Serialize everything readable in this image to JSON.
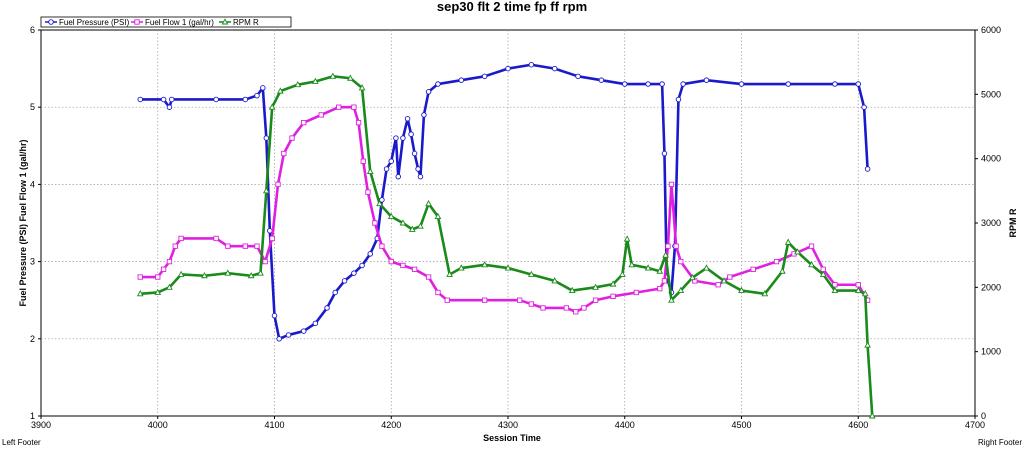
{
  "chart_data": {
    "type": "line",
    "title": "sep30 flt 2 time fp ff rpm",
    "xlabel": "Session Time",
    "ylabel": "Fuel Pressure (PSI) Fuel Flow 1 (gal/hr)",
    "ylabel_right": "RPM R",
    "xlim": [
      3900,
      4700
    ],
    "ylim": [
      1,
      6
    ],
    "ylim_right": [
      0,
      6000
    ],
    "x_ticks": [
      "3900",
      "4000",
      "4100",
      "4200",
      "4300",
      "4400",
      "4500",
      "4600",
      "4700"
    ],
    "y_ticks": [
      "1",
      "2",
      "3",
      "4",
      "5",
      "6"
    ],
    "y_ticks_right": [
      "0",
      "1000",
      "2000",
      "3000",
      "4000",
      "5000",
      "6000"
    ],
    "grid": true,
    "legend_position": "top-left",
    "series": [
      {
        "name": "Fuel Pressure (PSI)",
        "color": "#1a1acc",
        "marker": "circle",
        "axis": "left",
        "points": [
          [
            3985,
            5.1
          ],
          [
            4005,
            5.1
          ],
          [
            4010,
            5.0
          ],
          [
            4012,
            5.1
          ],
          [
            4050,
            5.1
          ],
          [
            4075,
            5.1
          ],
          [
            4085,
            5.15
          ],
          [
            4090,
            5.25
          ],
          [
            4093,
            4.6
          ],
          [
            4096,
            3.4
          ],
          [
            4100,
            2.3
          ],
          [
            4104,
            2.0
          ],
          [
            4112,
            2.05
          ],
          [
            4125,
            2.1
          ],
          [
            4135,
            2.2
          ],
          [
            4145,
            2.4
          ],
          [
            4152,
            2.6
          ],
          [
            4160,
            2.75
          ],
          [
            4168,
            2.85
          ],
          [
            4175,
            2.95
          ],
          [
            4182,
            3.1
          ],
          [
            4188,
            3.3
          ],
          [
            4192,
            3.8
          ],
          [
            4196,
            4.2
          ],
          [
            4200,
            4.3
          ],
          [
            4204,
            4.6
          ],
          [
            4206,
            4.1
          ],
          [
            4210,
            4.6
          ],
          [
            4214,
            4.85
          ],
          [
            4217,
            4.65
          ],
          [
            4220,
            4.4
          ],
          [
            4223,
            4.2
          ],
          [
            4225,
            4.1
          ],
          [
            4228,
            4.9
          ],
          [
            4232,
            5.2
          ],
          [
            4240,
            5.3
          ],
          [
            4260,
            5.35
          ],
          [
            4280,
            5.4
          ],
          [
            4300,
            5.5
          ],
          [
            4320,
            5.55
          ],
          [
            4340,
            5.5
          ],
          [
            4360,
            5.4
          ],
          [
            4380,
            5.35
          ],
          [
            4400,
            5.3
          ],
          [
            4420,
            5.3
          ],
          [
            4432,
            5.3
          ],
          [
            4434,
            4.4
          ],
          [
            4436,
            2.8
          ],
          [
            4440,
            2.6
          ],
          [
            4443,
            3.2
          ],
          [
            4446,
            5.1
          ],
          [
            4450,
            5.3
          ],
          [
            4470,
            5.35
          ],
          [
            4500,
            5.3
          ],
          [
            4540,
            5.3
          ],
          [
            4580,
            5.3
          ],
          [
            4600,
            5.3
          ],
          [
            4605,
            5.0
          ],
          [
            4608,
            4.2
          ]
        ]
      },
      {
        "name": "Fuel Flow 1 (gal/hr)",
        "color": "#e020e0",
        "marker": "square",
        "axis": "left",
        "points": [
          [
            3985,
            2.8
          ],
          [
            4000,
            2.8
          ],
          [
            4005,
            2.9
          ],
          [
            4010,
            3.0
          ],
          [
            4015,
            3.2
          ],
          [
            4020,
            3.3
          ],
          [
            4050,
            3.3
          ],
          [
            4060,
            3.2
          ],
          [
            4075,
            3.2
          ],
          [
            4085,
            3.2
          ],
          [
            4092,
            3.0
          ],
          [
            4098,
            3.3
          ],
          [
            4103,
            4.0
          ],
          [
            4108,
            4.4
          ],
          [
            4115,
            4.6
          ],
          [
            4125,
            4.8
          ],
          [
            4140,
            4.9
          ],
          [
            4155,
            5.0
          ],
          [
            4168,
            5.0
          ],
          [
            4172,
            4.8
          ],
          [
            4176,
            4.3
          ],
          [
            4180,
            3.9
          ],
          [
            4186,
            3.5
          ],
          [
            4192,
            3.2
          ],
          [
            4200,
            3.0
          ],
          [
            4210,
            2.95
          ],
          [
            4220,
            2.9
          ],
          [
            4232,
            2.8
          ],
          [
            4240,
            2.6
          ],
          [
            4248,
            2.5
          ],
          [
            4280,
            2.5
          ],
          [
            4310,
            2.5
          ],
          [
            4320,
            2.45
          ],
          [
            4330,
            2.4
          ],
          [
            4350,
            2.4
          ],
          [
            4358,
            2.35
          ],
          [
            4365,
            2.4
          ],
          [
            4375,
            2.5
          ],
          [
            4390,
            2.55
          ],
          [
            4410,
            2.6
          ],
          [
            4430,
            2.65
          ],
          [
            4434,
            2.75
          ],
          [
            4437,
            3.2
          ],
          [
            4440,
            4.0
          ],
          [
            4444,
            3.2
          ],
          [
            4448,
            3.0
          ],
          [
            4460,
            2.75
          ],
          [
            4480,
            2.7
          ],
          [
            4490,
            2.8
          ],
          [
            4510,
            2.9
          ],
          [
            4530,
            3.0
          ],
          [
            4545,
            3.1
          ],
          [
            4560,
            3.2
          ],
          [
            4570,
            2.9
          ],
          [
            4580,
            2.7
          ],
          [
            4600,
            2.7
          ],
          [
            4608,
            2.5
          ]
        ]
      },
      {
        "name": "RPM R",
        "color": "#1a8a1a",
        "marker": "triangle",
        "axis": "right",
        "points": [
          [
            3985,
            1900
          ],
          [
            4000,
            1920
          ],
          [
            4010,
            2000
          ],
          [
            4020,
            2200
          ],
          [
            4040,
            2180
          ],
          [
            4060,
            2220
          ],
          [
            4080,
            2180
          ],
          [
            4088,
            2220
          ],
          [
            4093,
            3500
          ],
          [
            4098,
            4800
          ],
          [
            4105,
            5050
          ],
          [
            4120,
            5150
          ],
          [
            4135,
            5200
          ],
          [
            4150,
            5280
          ],
          [
            4165,
            5250
          ],
          [
            4175,
            5100
          ],
          [
            4182,
            3800
          ],
          [
            4190,
            3300
          ],
          [
            4200,
            3100
          ],
          [
            4210,
            3000
          ],
          [
            4218,
            2900
          ],
          [
            4225,
            2950
          ],
          [
            4232,
            3300
          ],
          [
            4240,
            3100
          ],
          [
            4250,
            2200
          ],
          [
            4260,
            2300
          ],
          [
            4280,
            2350
          ],
          [
            4300,
            2300
          ],
          [
            4320,
            2200
          ],
          [
            4340,
            2100
          ],
          [
            4355,
            1950
          ],
          [
            4375,
            2000
          ],
          [
            4390,
            2050
          ],
          [
            4398,
            2200
          ],
          [
            4402,
            2750
          ],
          [
            4406,
            2350
          ],
          [
            4420,
            2300
          ],
          [
            4430,
            2250
          ],
          [
            4435,
            2500
          ],
          [
            4440,
            1800
          ],
          [
            4448,
            1950
          ],
          [
            4458,
            2150
          ],
          [
            4470,
            2300
          ],
          [
            4485,
            2100
          ],
          [
            4500,
            1950
          ],
          [
            4520,
            1900
          ],
          [
            4535,
            2250
          ],
          [
            4540,
            2700
          ],
          [
            4548,
            2550
          ],
          [
            4560,
            2350
          ],
          [
            4570,
            2200
          ],
          [
            4580,
            1950
          ],
          [
            4600,
            1950
          ],
          [
            4606,
            1900
          ],
          [
            4608,
            1100
          ],
          [
            4612,
            0
          ]
        ]
      }
    ]
  },
  "footer": {
    "left": "Left Footer",
    "right": "Right Footer"
  }
}
